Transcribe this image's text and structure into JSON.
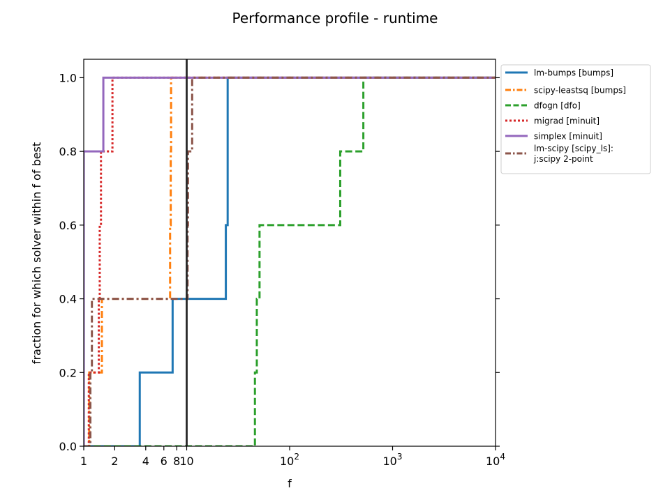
{
  "chart_data": {
    "type": "line",
    "step": true,
    "title": "Performance profile - runtime",
    "xlabel": "f",
    "ylabel": "fraction for which solver within f of best",
    "xscale": "log",
    "xlim": [
      1,
      10000
    ],
    "ylim": [
      0,
      1.05
    ],
    "grid": false,
    "legend_position": "outside-top-right",
    "vline_x": 10,
    "x_ticks": [
      {
        "value": 1,
        "label": "1"
      },
      {
        "value": 2,
        "label": "2"
      },
      {
        "value": 4,
        "label": "4"
      },
      {
        "value": 6,
        "label": "6"
      },
      {
        "value": 8,
        "label": "8"
      },
      {
        "value": 10,
        "label": "10"
      },
      {
        "value": 100,
        "label": "10",
        "exp": "2"
      },
      {
        "value": 1000,
        "label": "10",
        "exp": "3"
      },
      {
        "value": 10000,
        "label": "10",
        "exp": "4"
      }
    ],
    "y_ticks": [
      {
        "value": 0,
        "label": "0.0"
      },
      {
        "value": 0.2,
        "label": "0.2"
      },
      {
        "value": 0.4,
        "label": "0.4"
      },
      {
        "value": 0.6,
        "label": "0.6"
      },
      {
        "value": 0.8,
        "label": "0.8"
      },
      {
        "value": 1.0,
        "label": "1.0"
      }
    ],
    "series": [
      {
        "name": "lm-bumps [bumps]",
        "color": "#1f77b4",
        "dash": "solid",
        "points": [
          [
            1,
            0
          ],
          [
            3.5,
            0
          ],
          [
            3.5,
            0.2
          ],
          [
            7.3,
            0.2
          ],
          [
            7.3,
            0.4
          ],
          [
            24,
            0.4
          ],
          [
            24,
            0.6
          ],
          [
            25,
            0.6
          ],
          [
            25,
            1.0
          ],
          [
            10000,
            1.0
          ]
        ]
      },
      {
        "name": "scipy-leastsq [bumps]",
        "color": "#ff7f0e",
        "dash": "dashdot",
        "points": [
          [
            1,
            0
          ],
          [
            1.13,
            0
          ],
          [
            1.13,
            0.2
          ],
          [
            1.5,
            0.2
          ],
          [
            1.5,
            0.4
          ],
          [
            6.9,
            0.4
          ],
          [
            6.9,
            0.6
          ],
          [
            7.0,
            0.6
          ],
          [
            7.0,
            0.8
          ],
          [
            7.05,
            0.8
          ],
          [
            7.05,
            1.0
          ],
          [
            10000,
            1.0
          ]
        ]
      },
      {
        "name": "dfogn [dfo]",
        "color": "#2ca02c",
        "dash": "dashed",
        "points": [
          [
            1,
            0
          ],
          [
            46,
            0
          ],
          [
            46,
            0.2
          ],
          [
            48,
            0.2
          ],
          [
            48,
            0.4
          ],
          [
            51,
            0.4
          ],
          [
            51,
            0.6
          ],
          [
            310,
            0.6
          ],
          [
            310,
            0.8
          ],
          [
            520,
            0.8
          ],
          [
            520,
            1.0
          ],
          [
            10000,
            1.0
          ]
        ]
      },
      {
        "name": "migrad [minuit]",
        "color": "#d62728",
        "dash": "dotted",
        "points": [
          [
            1,
            0
          ],
          [
            1.12,
            0
          ],
          [
            1.12,
            0.2
          ],
          [
            1.4,
            0.2
          ],
          [
            1.4,
            0.4
          ],
          [
            1.43,
            0.4
          ],
          [
            1.43,
            0.6
          ],
          [
            1.47,
            0.6
          ],
          [
            1.47,
            0.8
          ],
          [
            1.9,
            0.8
          ],
          [
            1.9,
            1.0
          ],
          [
            10000,
            1.0
          ]
        ]
      },
      {
        "name": "simplex [minuit]",
        "color": "#9467bd",
        "dash": "solid",
        "points": [
          [
            1,
            0
          ],
          [
            1,
            0.8
          ],
          [
            1.55,
            0.8
          ],
          [
            1.55,
            1.0
          ],
          [
            10000,
            1.0
          ]
        ]
      },
      {
        "name": "lm-scipy [scipy_ls]:\nj:scipy 2-point",
        "color": "#8c564b",
        "dash": "dashdot",
        "points": [
          [
            1,
            0
          ],
          [
            1.16,
            0
          ],
          [
            1.16,
            0.2
          ],
          [
            1.2,
            0.2
          ],
          [
            1.2,
            0.4
          ],
          [
            10.2,
            0.4
          ],
          [
            10.2,
            0.6
          ],
          [
            10.3,
            0.6
          ],
          [
            10.3,
            0.8
          ],
          [
            11.3,
            0.8
          ],
          [
            11.3,
            1.0
          ],
          [
            10000,
            1.0
          ]
        ]
      }
    ]
  }
}
